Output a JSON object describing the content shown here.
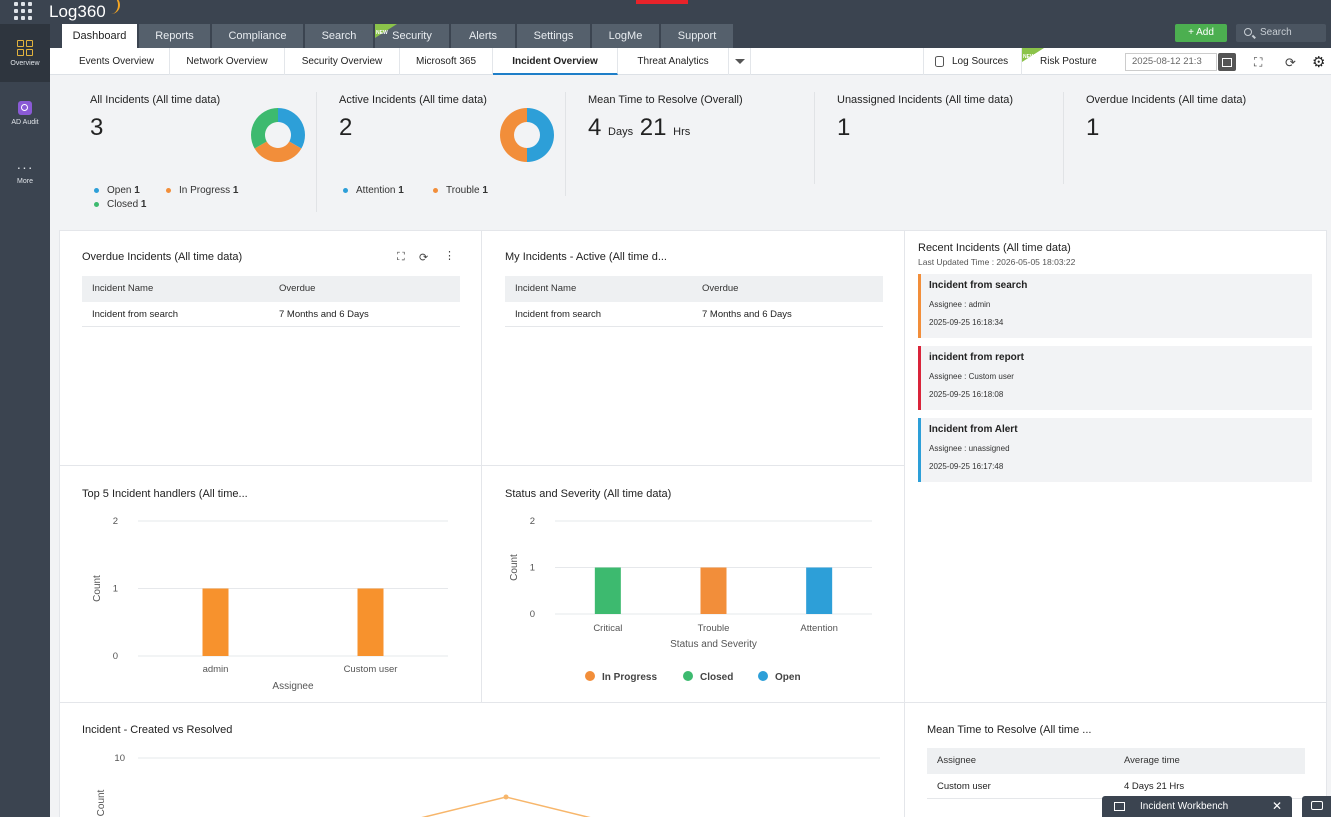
{
  "app": {
    "title": "Log360"
  },
  "topnav": {
    "tabs": [
      {
        "label": "Dashboard",
        "active": true
      },
      {
        "label": "Reports"
      },
      {
        "label": "Compliance"
      },
      {
        "label": "Search"
      },
      {
        "label": "Security",
        "badge": "NEW"
      },
      {
        "label": "Alerts"
      },
      {
        "label": "Settings"
      },
      {
        "label": "LogMe"
      },
      {
        "label": "Support"
      }
    ],
    "add_label": "+ Add",
    "search_placeholder": "Search"
  },
  "sidebar": {
    "items": [
      {
        "label": "Overview",
        "icon": "grid-squares-icon",
        "active": true
      },
      {
        "label": "AD Audit",
        "icon": "magnifier-badge-icon"
      },
      {
        "label": "More",
        "icon": "ellipsis-icon"
      }
    ]
  },
  "subnav": {
    "tabs": [
      {
        "label": "Events Overview"
      },
      {
        "label": "Network Overview"
      },
      {
        "label": "Security Overview"
      },
      {
        "label": "Microsoft 365"
      },
      {
        "label": "Incident Overview",
        "active": true
      },
      {
        "label": "Threat Analytics"
      }
    ],
    "log_sources": "Log Sources",
    "risk_posture": "Risk Posture",
    "risk_badge": "NEW",
    "date_value": "2025-08-12 21:3"
  },
  "summary": {
    "all": {
      "title": "All Incidents (All time data)",
      "value": "3",
      "legend": [
        {
          "label": "Open",
          "count": "1",
          "color": "#2d9fd8"
        },
        {
          "label": "In Progress",
          "count": "1",
          "color": "#f28e3a"
        },
        {
          "label": "Closed",
          "count": "1",
          "color": "#3dba6f"
        }
      ]
    },
    "active": {
      "title": "Active Incidents (All time data)",
      "value": "2",
      "legend": [
        {
          "label": "Attention",
          "count": "1",
          "color": "#2d9fd8"
        },
        {
          "label": "Trouble",
          "count": "1",
          "color": "#f28e3a"
        }
      ]
    },
    "mttr": {
      "title": "Mean Time to Resolve (Overall)",
      "days": "4",
      "days_unit": "Days",
      "hours": "21",
      "hours_unit": "Hrs"
    },
    "unassigned": {
      "title": "Unassigned Incidents (All time data)",
      "value": "1"
    },
    "overdue": {
      "title": "Overdue Incidents (All time data)",
      "value": "1"
    }
  },
  "overdue_panel": {
    "title": "Overdue Incidents (All time data)",
    "columns": [
      "Incident Name",
      "Overdue"
    ],
    "rows": [
      [
        "Incident from search",
        "7 Months and 6 Days"
      ]
    ]
  },
  "my_incidents_panel": {
    "title": "My Incidents - Active (All time d...",
    "columns": [
      "Incident Name",
      "Overdue"
    ],
    "rows": [
      [
        "Incident from search",
        "7 Months and 6 Days"
      ]
    ]
  },
  "recent_panel": {
    "title": "Recent Incidents (All time data)",
    "updated": "Last Updated Time : 2026-05-05 18:03:22",
    "items": [
      {
        "title": "Incident from search",
        "assignee_label": "Assignee :",
        "assignee": "admin",
        "time": "2025-09-25 16:18:34",
        "color": "#f28e3a"
      },
      {
        "title": "incident from report",
        "assignee_label": "Assignee :",
        "assignee": "Custom user",
        "time": "2025-09-25 16:18:08",
        "color": "#d9243a"
      },
      {
        "title": "Incident from Alert",
        "assignee_label": "Assignee :",
        "assignee": "unassigned",
        "time": "2025-09-25 16:17:48",
        "color": "#2d9fd8"
      }
    ]
  },
  "handlers_panel": {
    "title": "Top 5 Incident handlers (All time..."
  },
  "status_panel": {
    "title": "Status and Severity (All time data)"
  },
  "created_panel": {
    "title": "Incident - Created vs Resolved"
  },
  "mttr_panel": {
    "title": "Mean Time to Resolve (All time ...",
    "columns": [
      "Assignee",
      "Average time"
    ],
    "rows": [
      [
        "Custom user",
        "4 Days 21 Hrs"
      ]
    ]
  },
  "footer": {
    "workbench": "Incident Workbench"
  },
  "chart_data": [
    {
      "type": "pie",
      "categories": [
        "Open",
        "In Progress",
        "Closed"
      ],
      "values": [
        1,
        1,
        1
      ],
      "colors": [
        "#2d9fd8",
        "#f28e3a",
        "#3dba6f"
      ]
    },
    {
      "type": "pie",
      "categories": [
        "Attention",
        "Trouble"
      ],
      "values": [
        1,
        1
      ],
      "colors": [
        "#2d9fd8",
        "#f28e3a"
      ]
    },
    {
      "type": "bar",
      "categories": [
        "admin",
        "Custom user"
      ],
      "values": [
        1,
        1
      ],
      "xlabel": "Assignee",
      "ylabel": "Count",
      "ylim": [
        0,
        2
      ],
      "yticks": [
        "0",
        "1",
        "2"
      ],
      "color": "#f7922d",
      "grid": true
    },
    {
      "type": "bar",
      "categories": [
        "Critical",
        "Trouble",
        "Attention"
      ],
      "values": [
        1,
        1,
        1
      ],
      "colors": [
        "#3dba6f",
        "#f28e3a",
        "#2d9fd8"
      ],
      "xlabel": "Status and Severity",
      "ylabel": "Count",
      "ylim": [
        0,
        2
      ],
      "yticks": [
        "0",
        "1",
        "2"
      ],
      "legend": [
        {
          "label": "In Progress",
          "color": "#f28e3a"
        },
        {
          "label": "Closed",
          "color": "#3dba6f"
        },
        {
          "label": "Open",
          "color": "#2d9fd8"
        }
      ],
      "grid": true
    },
    {
      "type": "line",
      "ylabel": "Count",
      "ymax_tick": "10",
      "color": "#f7b66b"
    }
  ]
}
